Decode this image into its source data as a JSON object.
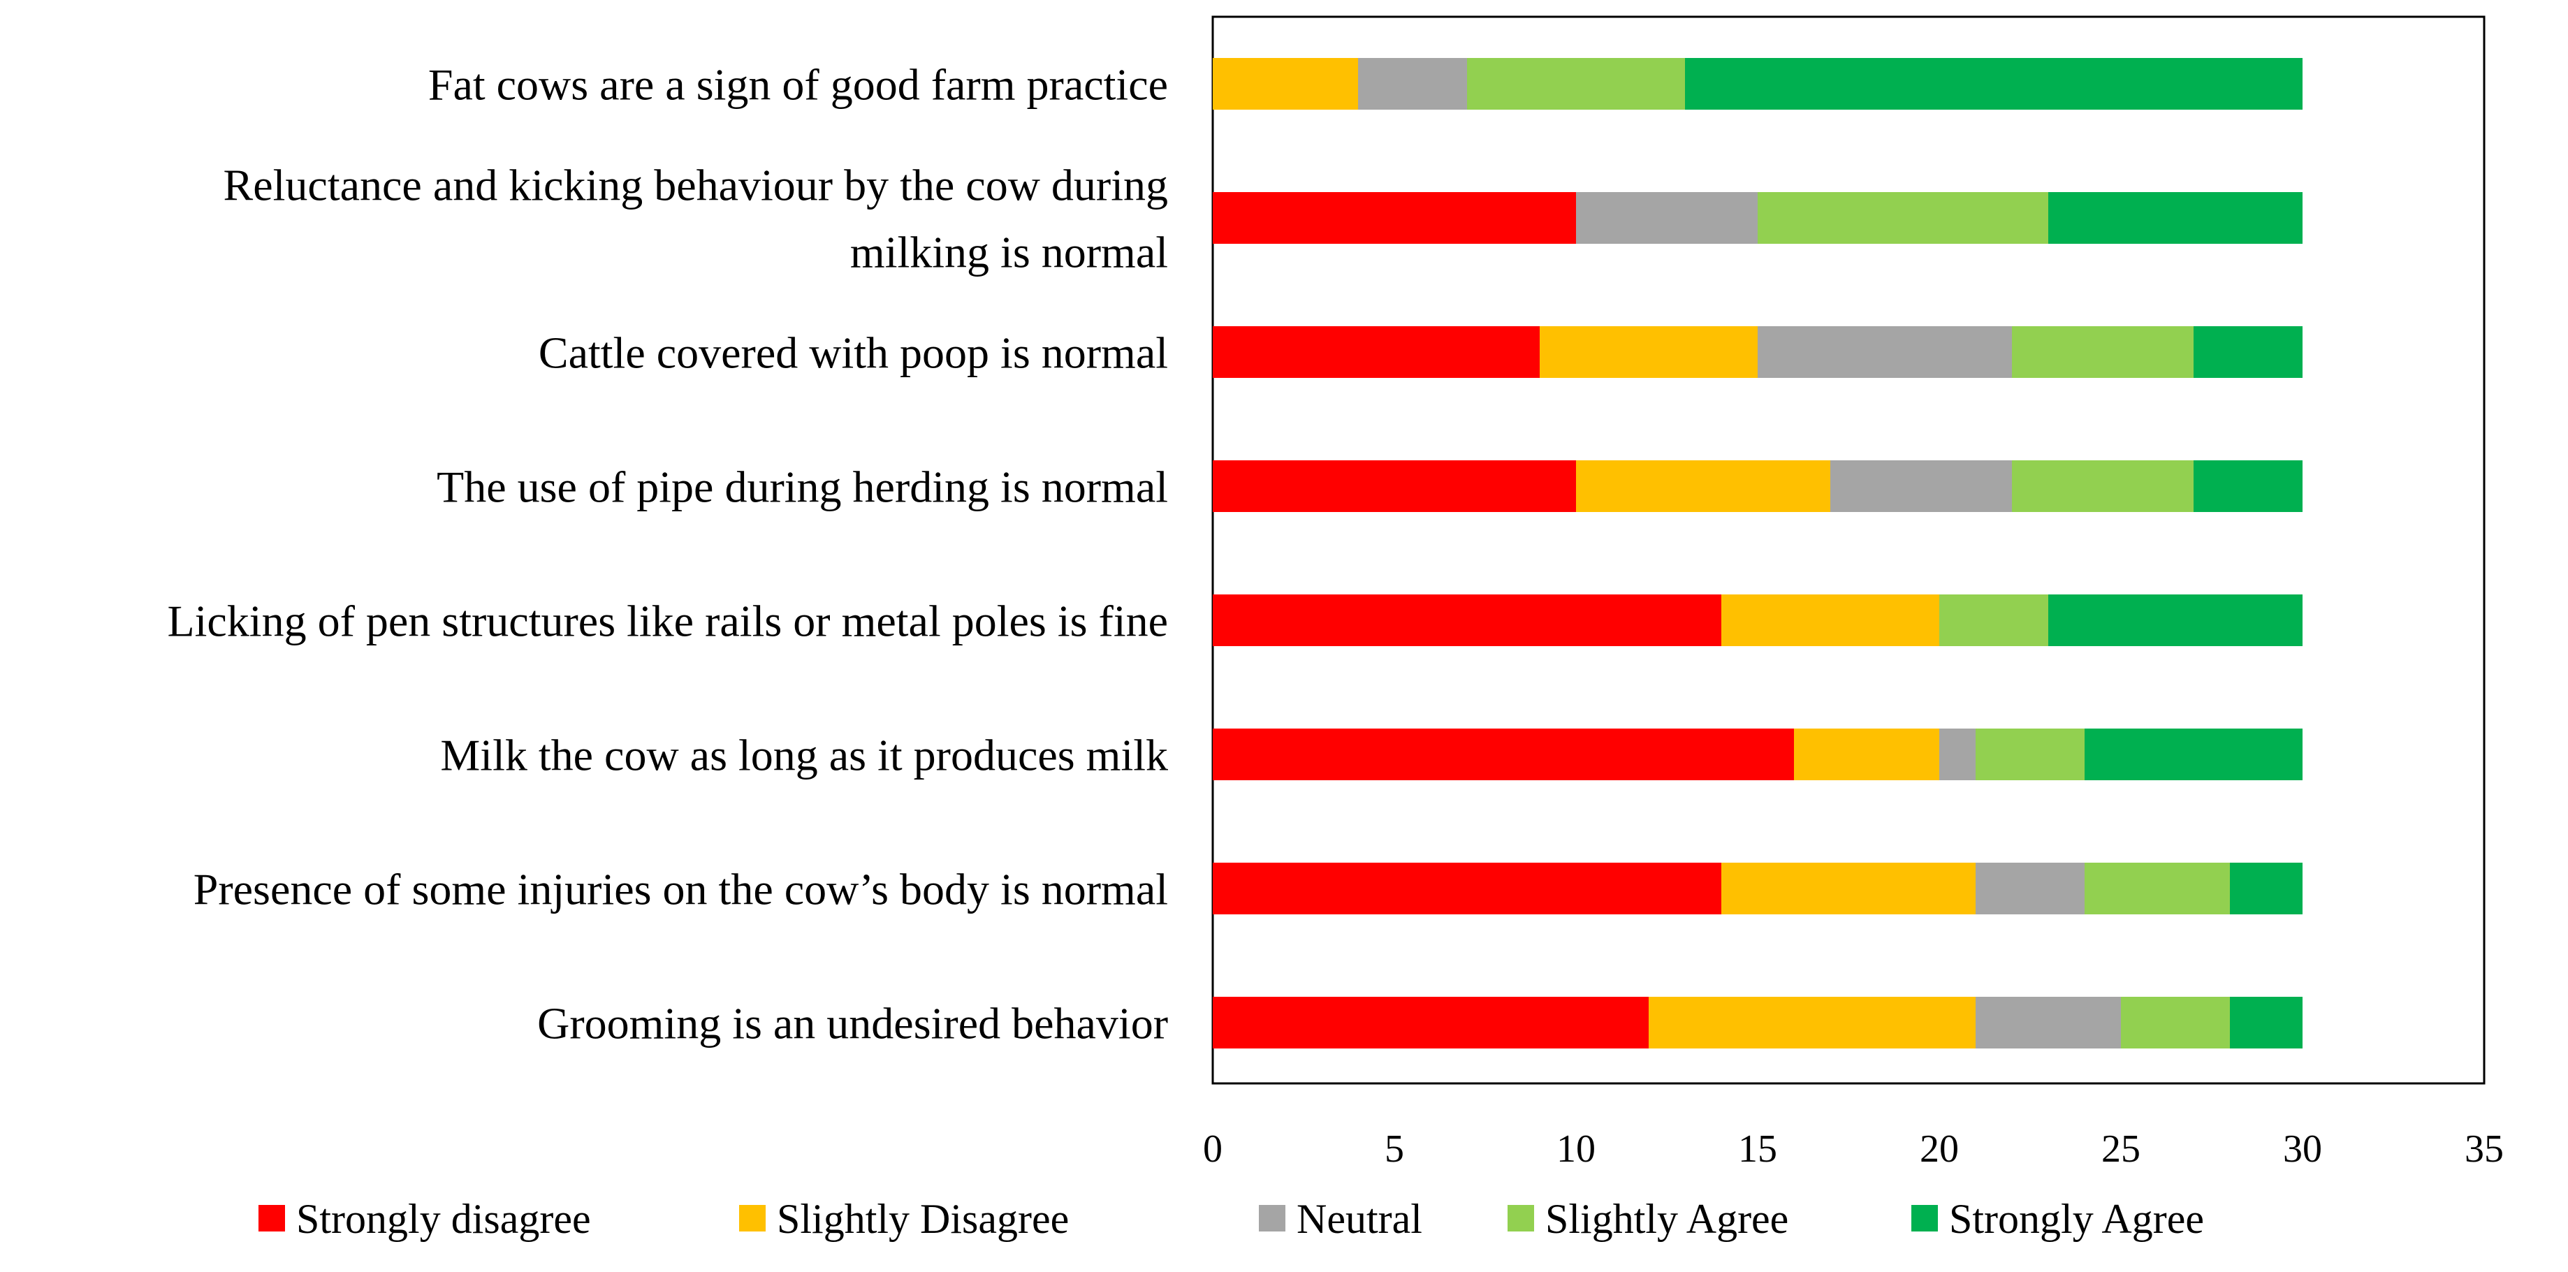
{
  "chart_data": {
    "type": "bar",
    "orientation": "horizontal",
    "stacked": true,
    "title": "",
    "xlabel": "",
    "ylabel": "",
    "xlim": [
      0,
      35
    ],
    "x_ticks": [
      0,
      5,
      10,
      15,
      20,
      25,
      30,
      35
    ],
    "grid": false,
    "legend_position": "bottom",
    "categories": [
      [
        "Fat cows are a sign of good farm practice"
      ],
      [
        "Reluctance and kicking behaviour by the cow during",
        "milking is normal"
      ],
      [
        "Cattle covered with poop is normal"
      ],
      [
        "The use of pipe during herding is normal"
      ],
      [
        "Licking of pen structures like rails or metal poles is fine"
      ],
      [
        "Milk the cow as long as it produces milk"
      ],
      [
        "Presence of some injuries on the cow’s body is normal"
      ],
      [
        "Grooming is an undesired behavior"
      ]
    ],
    "series": [
      {
        "name": "Strongly disagree",
        "color": "#ff0000",
        "values": [
          0,
          10,
          9,
          10,
          14,
          16,
          14,
          12
        ]
      },
      {
        "name": "Slightly Disagree",
        "color": "#ffc000",
        "values": [
          4,
          0,
          6,
          7,
          6,
          4,
          7,
          9
        ]
      },
      {
        "name": "Neutral",
        "color": "#a5a5a5",
        "values": [
          3,
          5,
          7,
          5,
          0,
          1,
          3,
          4
        ]
      },
      {
        "name": "Slightly Agree",
        "color": "#92d050",
        "values": [
          6,
          8,
          5,
          5,
          3,
          3,
          4,
          3
        ]
      },
      {
        "name": "Strongly Agree",
        "color": "#00b050",
        "values": [
          17,
          7,
          3,
          3,
          7,
          6,
          2,
          2
        ]
      }
    ]
  }
}
